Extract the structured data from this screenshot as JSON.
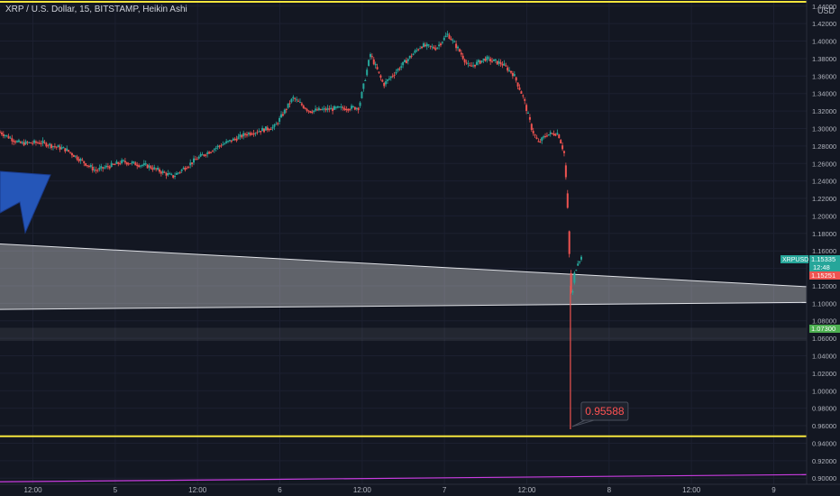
{
  "header": {
    "legend_text": "XRP / U.S. Dollar, 15, BITSTAMP, Heikin Ashi",
    "currency": "USD"
  },
  "colors": {
    "background": "#131722",
    "up": "#26a69a",
    "down": "#ef5350",
    "horizontal_line": "#f5e63c",
    "bottom_line": "#c93ce0",
    "channel_fill": "#ffffff",
    "arrow": "#2556b8"
  },
  "price_tags": {
    "symbol": "XRPUSD",
    "last_price": "1.15335",
    "countdown": "12:48",
    "open_price": "1.15251",
    "level_label": "1.07300"
  },
  "callout": {
    "value": "0.95588"
  },
  "chart_data": {
    "type": "candlestick",
    "title": "XRP / U.S. Dollar, 15, BITSTAMP, Heikin Ashi",
    "y_axis": {
      "unit": "USD",
      "range": [
        0.893,
        1.447
      ],
      "ticks": [
        "0.90000",
        "0.92000",
        "0.94000",
        "0.96000",
        "0.98000",
        "1.00000",
        "1.02000",
        "1.04000",
        "1.06000",
        "1.08000",
        "1.10000",
        "1.12000",
        "1.14000",
        "1.16000",
        "1.18000",
        "1.20000",
        "1.22000",
        "1.24000",
        "1.26000",
        "1.28000",
        "1.30000",
        "1.32000",
        "1.34000",
        "1.36000",
        "1.38000",
        "1.40000",
        "1.42000",
        "1.44000"
      ]
    },
    "x_axis": {
      "range_days": [
        4.3,
        9.2
      ],
      "ticks": [
        {
          "t": 4.5,
          "label": "12:00"
        },
        {
          "t": 5.0,
          "label": "5"
        },
        {
          "t": 5.5,
          "label": "12:00"
        },
        {
          "t": 6.0,
          "label": "6"
        },
        {
          "t": 6.5,
          "label": "12:00"
        },
        {
          "t": 7.0,
          "label": "7"
        },
        {
          "t": 7.5,
          "label": "12:00"
        },
        {
          "t": 8.0,
          "label": "8"
        },
        {
          "t": 8.5,
          "label": "12:00"
        },
        {
          "t": 9.0,
          "label": "9"
        }
      ]
    },
    "price_path": [
      {
        "t": 4.3,
        "p": 1.296
      },
      {
        "t": 4.42,
        "p": 1.283
      },
      {
        "t": 4.55,
        "p": 1.284
      },
      {
        "t": 4.7,
        "p": 1.276
      },
      {
        "t": 4.88,
        "p": 1.252
      },
      {
        "t": 5.05,
        "p": 1.262
      },
      {
        "t": 5.2,
        "p": 1.257
      },
      {
        "t": 5.35,
        "p": 1.245
      },
      {
        "t": 5.5,
        "p": 1.266
      },
      {
        "t": 5.63,
        "p": 1.28
      },
      {
        "t": 5.8,
        "p": 1.294
      },
      {
        "t": 5.97,
        "p": 1.302
      },
      {
        "t": 6.08,
        "p": 1.335
      },
      {
        "t": 6.18,
        "p": 1.32
      },
      {
        "t": 6.35,
        "p": 1.323
      },
      {
        "t": 6.48,
        "p": 1.324
      },
      {
        "t": 6.55,
        "p": 1.385
      },
      {
        "t": 6.63,
        "p": 1.35
      },
      {
        "t": 6.75,
        "p": 1.374
      },
      {
        "t": 6.86,
        "p": 1.395
      },
      {
        "t": 6.95,
        "p": 1.392
      },
      {
        "t": 7.02,
        "p": 1.408
      },
      {
        "t": 7.08,
        "p": 1.392
      },
      {
        "t": 7.15,
        "p": 1.37
      },
      {
        "t": 7.25,
        "p": 1.38
      },
      {
        "t": 7.35,
        "p": 1.374
      },
      {
        "t": 7.42,
        "p": 1.362
      },
      {
        "t": 7.48,
        "p": 1.335
      },
      {
        "t": 7.53,
        "p": 1.3
      },
      {
        "t": 7.57,
        "p": 1.283
      },
      {
        "t": 7.62,
        "p": 1.293
      },
      {
        "t": 7.69,
        "p": 1.295
      },
      {
        "t": 7.73,
        "p": 1.27
      },
      {
        "t": 7.75,
        "p": 1.2
      },
      {
        "t": 7.765,
        "p": 1.12
      },
      {
        "t": 7.775,
        "p": 1.1
      },
      {
        "t": 7.785,
        "p": 1.13
      },
      {
        "t": 7.81,
        "p": 1.148
      },
      {
        "t": 7.835,
        "p": 1.153
      }
    ],
    "spike_low": {
      "t": 7.765,
      "p": 0.95588
    },
    "horizontal_levels": [
      1.445,
      0.948
    ],
    "bottom_level": 0.901,
    "zone": [
      1.057,
      1.072
    ],
    "channel": {
      "upper": [
        {
          "t": 4.3,
          "p": 1.168
        },
        {
          "t": 9.2,
          "p": 1.119
        }
      ],
      "lower": [
        {
          "t": 4.3,
          "p": 1.093
        },
        {
          "t": 9.2,
          "p": 1.101
        }
      ]
    }
  }
}
